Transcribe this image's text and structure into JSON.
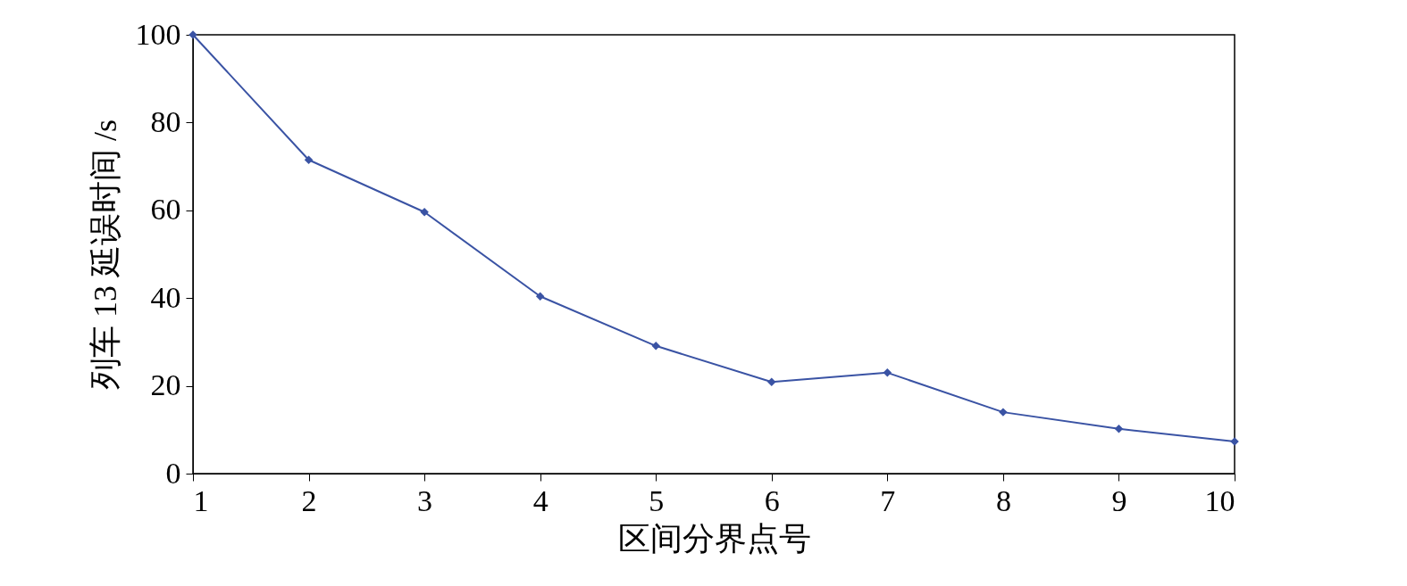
{
  "chart_data": {
    "type": "line",
    "xlabel": "区间分界点号",
    "ylabel": "列车 13 延误时间 /s",
    "x": [
      1,
      2,
      3,
      4,
      5,
      6,
      7,
      8,
      9,
      10
    ],
    "series": [
      {
        "color": "#3a53a4",
        "values": [
          100,
          71.5,
          59.6,
          40.4,
          29.1,
          20.9,
          23.0,
          14.0,
          10.2,
          7.3
        ]
      }
    ],
    "xlim": [
      1,
      10
    ],
    "xticks": [
      1,
      2,
      3,
      4,
      5,
      6,
      7,
      8,
      9,
      10
    ],
    "ylim": [
      0,
      100
    ],
    "yticks": [
      0,
      20,
      40,
      60,
      80,
      100
    ],
    "marker": "diamond",
    "line_style": "solid",
    "grid": false
  }
}
